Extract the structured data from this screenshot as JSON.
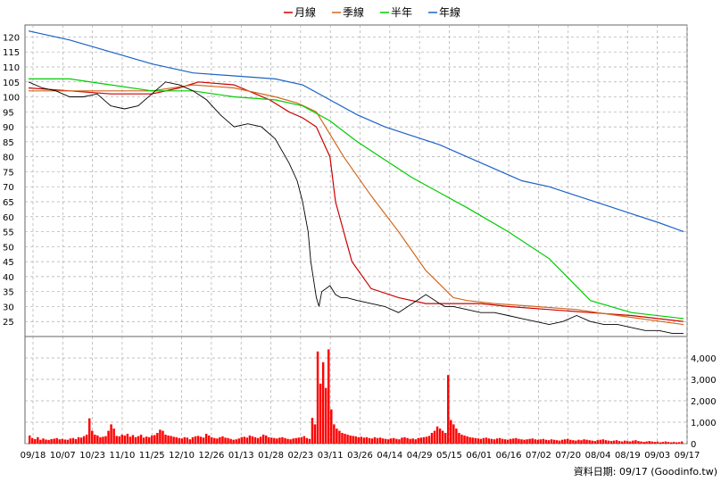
{
  "legend": [
    {
      "label": "月線",
      "color": "#cc0000"
    },
    {
      "label": "季線",
      "color": "#d2691e"
    },
    {
      "label": "半年",
      "color": "#00cc00"
    },
    {
      "label": "年線",
      "color": "#1a63c6"
    }
  ],
  "credit": "資料日期: 09/17  (Goodinfo.tw)",
  "chart_data": [
    {
      "type": "line",
      "panel": "price",
      "ylim": [
        20,
        124
      ],
      "yticks": [
        25,
        30,
        35,
        40,
        45,
        50,
        55,
        60,
        65,
        70,
        75,
        80,
        85,
        90,
        95,
        100,
        105,
        110,
        115,
        120
      ],
      "x_tick_labels": [
        "09/18",
        "10/07",
        "10/23",
        "11/10",
        "11/25",
        "12/10",
        "12/26",
        "01/13",
        "01/28",
        "02/23",
        "03/11",
        "03/26",
        "04/14",
        "04/29",
        "05/15",
        "06/01",
        "06/16",
        "07/02",
        "07/20",
        "08/04",
        "08/19",
        "09/03",
        "09/17"
      ],
      "grid": true,
      "n_days": 240,
      "series": [
        {
          "name": "月線",
          "color": "#cc0000",
          "x": [
            0,
            15,
            30,
            45,
            55,
            62,
            75,
            88,
            95,
            100,
            105,
            110,
            112,
            118,
            125,
            135,
            145,
            155,
            165,
            175,
            190,
            205,
            220,
            239
          ],
          "values": [
            103,
            102,
            101,
            101,
            103,
            105,
            104,
            99,
            95,
            93,
            90,
            80,
            65,
            45,
            36,
            33,
            31,
            31,
            31,
            30,
            29,
            28,
            27,
            25
          ]
        },
        {
          "name": "季線",
          "color": "#d2691e",
          "x": [
            0,
            15,
            30,
            45,
            60,
            75,
            90,
            98,
            105,
            115,
            125,
            135,
            145,
            155,
            160,
            170,
            185,
            200,
            215,
            239
          ],
          "values": [
            102,
            102,
            102,
            102,
            104,
            103,
            100,
            98,
            95,
            80,
            67,
            55,
            42,
            33,
            32,
            31,
            30,
            29,
            27,
            24
          ]
        },
        {
          "name": "半年",
          "color": "#00cc00",
          "x": [
            0,
            15,
            30,
            45,
            60,
            75,
            90,
            100,
            110,
            120,
            130,
            140,
            150,
            160,
            175,
            190,
            205,
            220,
            239
          ],
          "values": [
            106,
            106,
            104,
            102,
            102,
            100,
            99,
            97,
            92,
            85,
            79,
            73,
            68,
            63,
            55,
            46,
            32,
            28,
            26
          ]
        },
        {
          "name": "年線",
          "color": "#1a63c6",
          "x": [
            0,
            15,
            30,
            45,
            60,
            75,
            90,
            100,
            110,
            120,
            130,
            140,
            150,
            160,
            170,
            180,
            190,
            200,
            210,
            220,
            230,
            239
          ],
          "values": [
            122,
            119,
            115,
            111,
            108,
            107,
            106,
            104,
            99,
            94,
            90,
            87,
            84,
            80,
            76,
            72,
            70,
            67,
            64,
            61,
            58,
            55
          ]
        },
        {
          "name": "close",
          "color": "#000000",
          "x": [
            0,
            5,
            10,
            15,
            20,
            25,
            30,
            35,
            40,
            45,
            50,
            55,
            60,
            65,
            70,
            75,
            80,
            85,
            90,
            95,
            98,
            100,
            102,
            103,
            105,
            106,
            107,
            110,
            112,
            114,
            116,
            120,
            125,
            130,
            135,
            140,
            145,
            150,
            152,
            155,
            160,
            165,
            170,
            175,
            180,
            185,
            190,
            195,
            200,
            205,
            210,
            215,
            220,
            225,
            230,
            235,
            239
          ],
          "values": [
            105,
            103,
            102,
            100,
            100,
            101,
            97,
            96,
            97,
            101,
            105,
            104,
            102,
            99,
            94,
            90,
            91,
            90,
            86,
            78,
            72,
            65,
            55,
            45,
            33,
            30,
            35,
            37,
            34,
            33,
            33,
            32,
            31,
            30,
            28,
            31,
            34,
            31,
            30,
            30,
            29,
            28,
            28,
            27,
            26,
            25,
            24,
            25,
            27,
            25,
            24,
            24,
            23,
            22,
            22,
            21,
            21
          ]
        }
      ]
    },
    {
      "type": "bar",
      "panel": "volume",
      "ylim": [
        0,
        5000
      ],
      "yticks": [
        0,
        1000,
        2000,
        3000,
        4000
      ],
      "ytick_labels": [
        "0",
        "1,000",
        "2,000",
        "3,000",
        "4,000"
      ],
      "values": [
        380,
        260,
        210,
        300,
        180,
        240,
        190,
        170,
        210,
        230,
        260,
        200,
        220,
        190,
        180,
        240,
        260,
        210,
        300,
        280,
        350,
        420,
        1180,
        600,
        420,
        380,
        300,
        320,
        350,
        600,
        900,
        700,
        360,
        340,
        420,
        380,
        460,
        320,
        400,
        300,
        350,
        420,
        280,
        330,
        300,
        380,
        400,
        500,
        650,
        600,
        420,
        380,
        360,
        320,
        300,
        260,
        240,
        300,
        280,
        200,
        300,
        340,
        360,
        320,
        280,
        460,
        380,
        300,
        260,
        240,
        300,
        340,
        280,
        260,
        220,
        180,
        200,
        240,
        300,
        320,
        280,
        380,
        340,
        300,
        260,
        320,
        420,
        380,
        300,
        280,
        260,
        240,
        280,
        300,
        260,
        220,
        200,
        240,
        260,
        280,
        300,
        350,
        260,
        220,
        1200,
        900,
        4300,
        2800,
        3800,
        2600,
        4400,
        1600,
        900,
        700,
        600,
        500,
        460,
        420,
        380,
        360,
        340,
        300,
        320,
        280,
        300,
        260,
        240,
        300,
        260,
        280,
        240,
        220,
        200,
        240,
        260,
        220,
        200,
        280,
        300,
        260,
        220,
        240,
        200,
        260,
        280,
        300,
        320,
        360,
        500,
        600,
        800,
        700,
        600,
        500,
        3200,
        1100,
        900,
        700,
        500,
        420,
        380,
        340,
        300,
        280,
        260,
        240,
        220,
        260,
        280,
        240,
        220,
        200,
        240,
        260,
        220,
        200,
        180,
        220,
        240,
        260,
        220,
        200,
        180,
        200,
        220,
        240,
        200,
        180,
        200,
        220,
        180,
        160,
        200,
        180,
        160,
        140,
        180,
        200,
        220,
        180,
        160,
        140,
        180,
        160,
        200,
        180,
        160,
        140,
        120,
        160,
        180,
        200,
        160,
        140,
        120,
        140,
        160,
        120,
        100,
        140,
        120,
        100,
        140,
        160,
        120,
        100,
        80,
        100,
        120,
        100,
        80,
        100,
        60,
        80,
        100,
        80,
        60,
        80,
        60,
        70,
        100
      ]
    }
  ]
}
